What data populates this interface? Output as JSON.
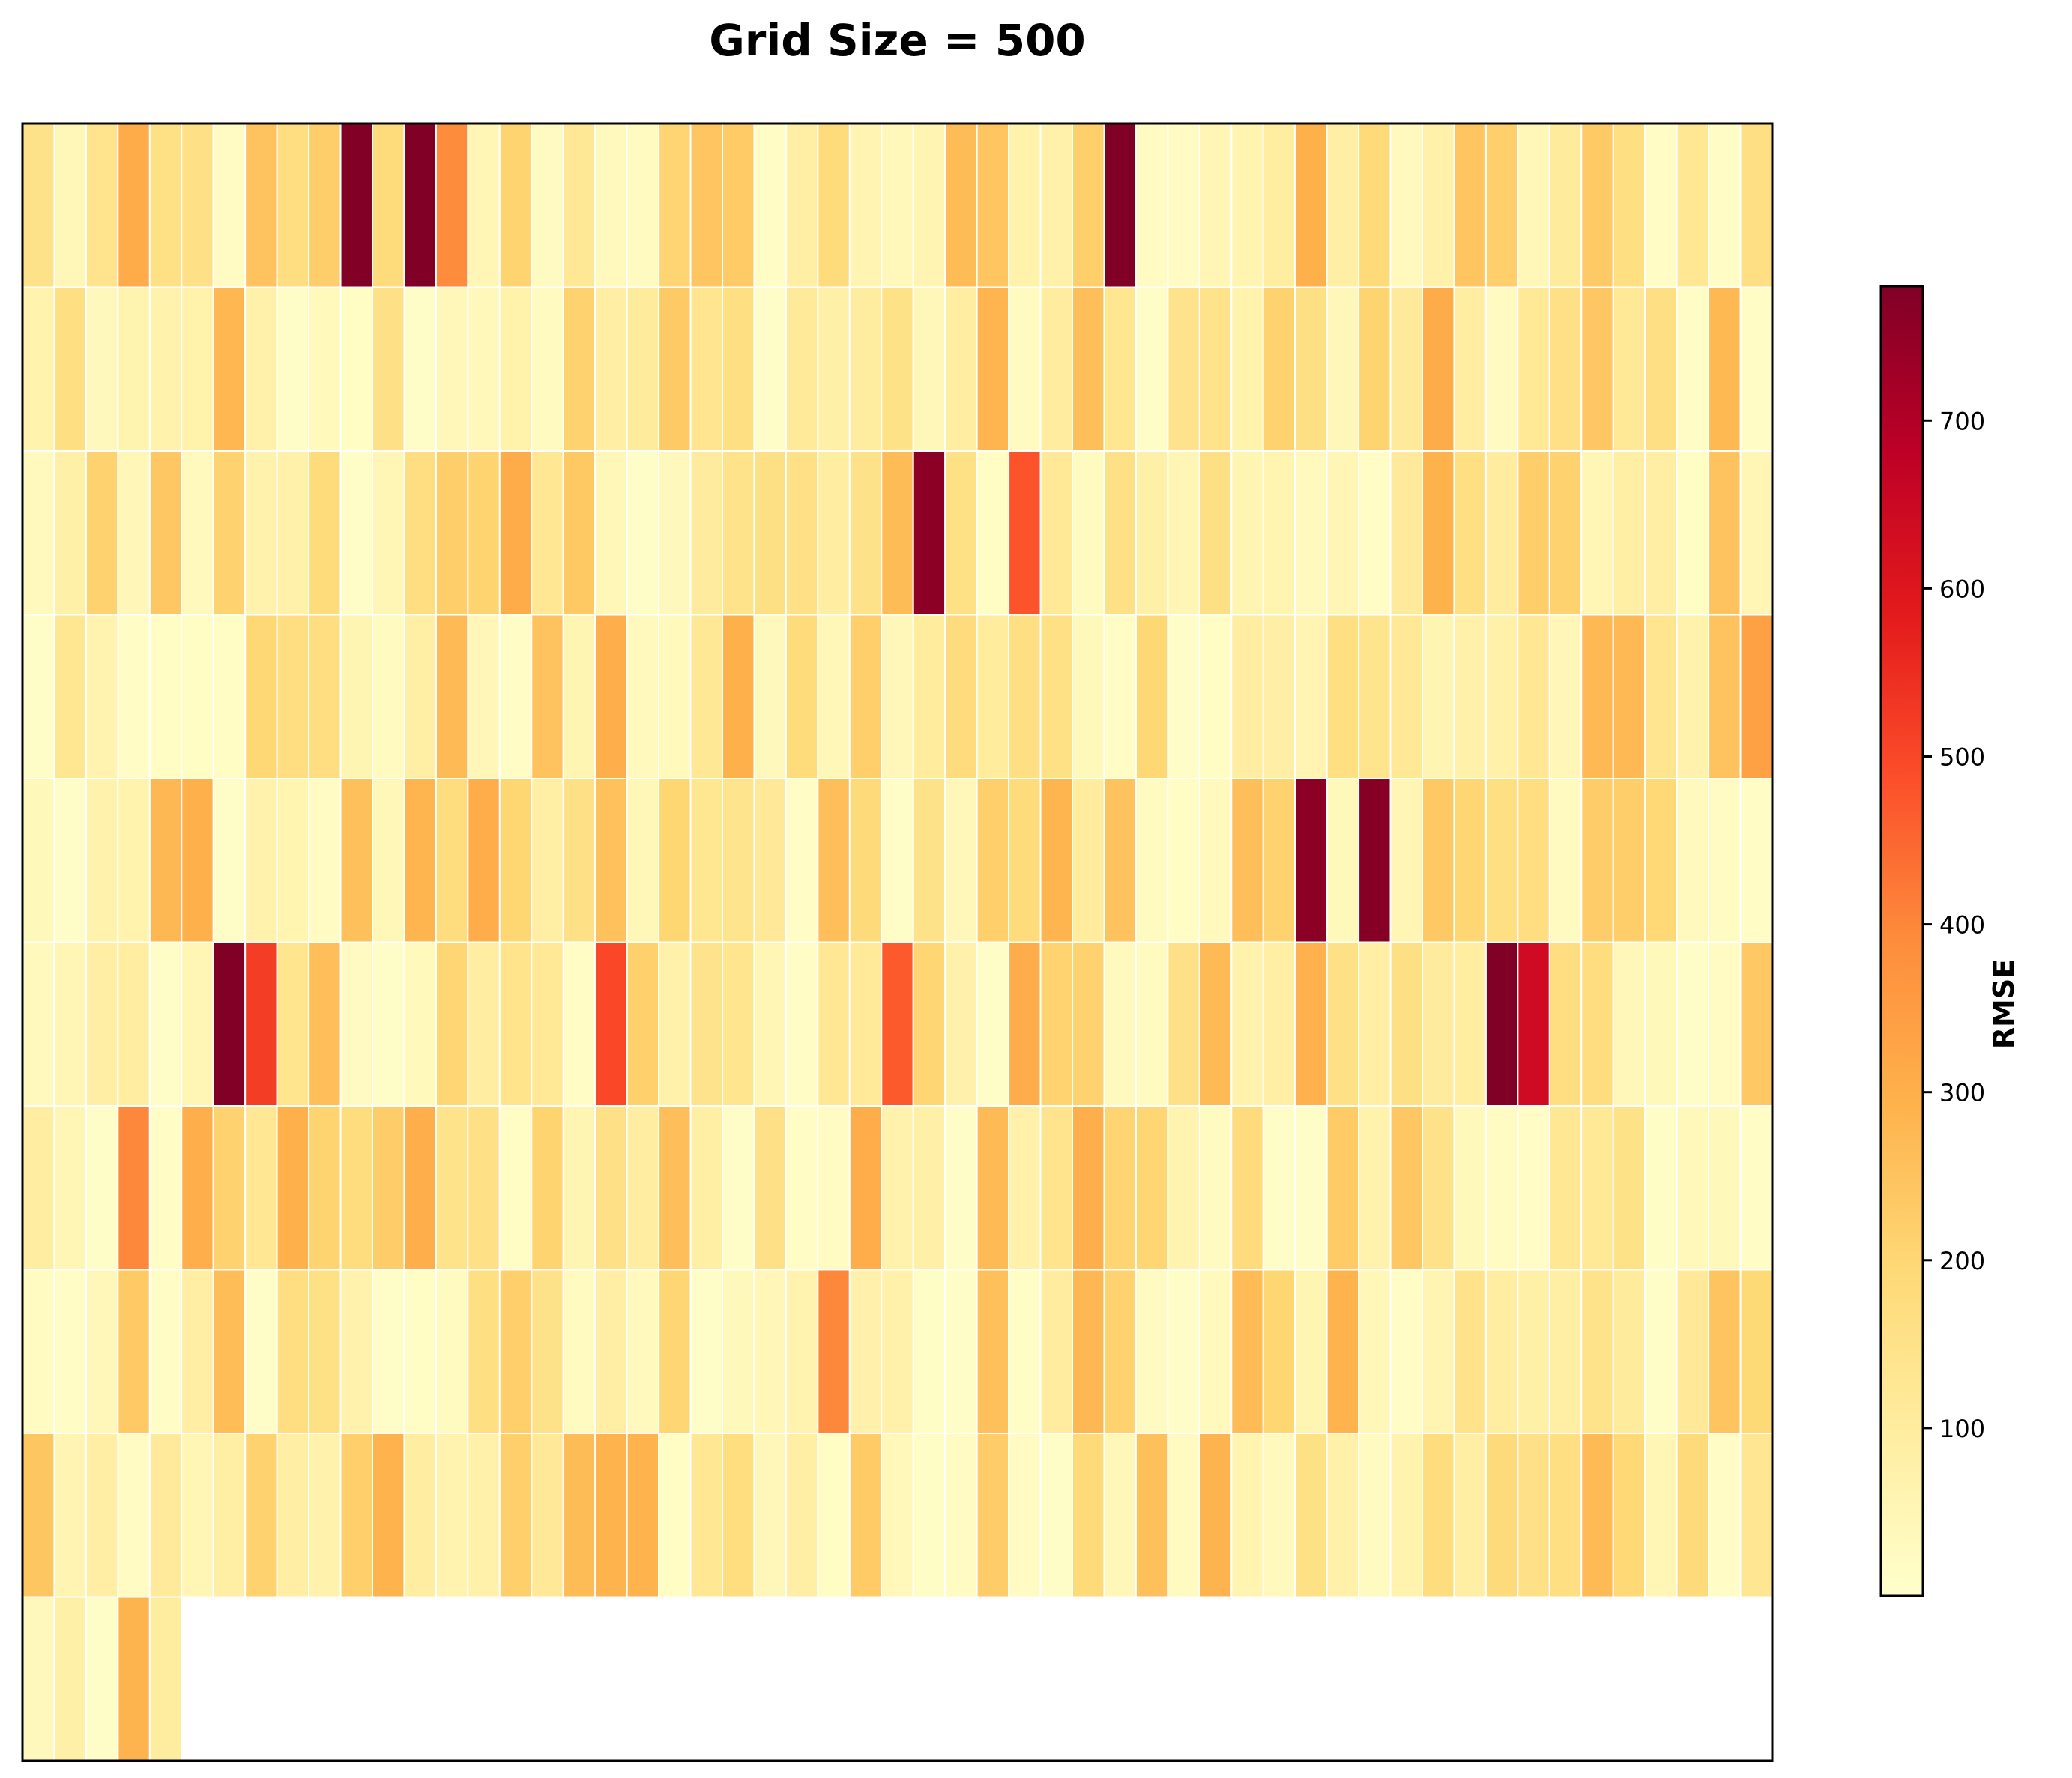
{
  "chart_data": {
    "type": "heatmap",
    "title": "Grid Size = 500",
    "colorbar": {
      "label": "RMSE",
      "ticks": [
        100,
        200,
        300,
        400,
        500,
        600,
        700
      ],
      "range": [
        0,
        780
      ]
    },
    "grid": {
      "columns": 55,
      "rows": 10,
      "cells": 500
    },
    "colormap": [
      "#ffffcc",
      "#ffeda0",
      "#fed976",
      "#feb24c",
      "#fd8d3c",
      "#fc4e2a",
      "#e31a1c",
      "#bd0026",
      "#800026"
    ],
    "high_cells": [
      {
        "col": 10,
        "row": 0,
        "value": 780
      },
      {
        "col": 12,
        "row": 0,
        "value": 780
      },
      {
        "col": 13,
        "row": 0,
        "value": 390
      },
      {
        "col": 34,
        "row": 0,
        "value": 780
      },
      {
        "col": 28,
        "row": 2,
        "value": 760
      },
      {
        "col": 31,
        "row": 2,
        "value": 480
      },
      {
        "col": 6,
        "row": 5,
        "value": 780
      },
      {
        "col": 7,
        "row": 5,
        "value": 520
      },
      {
        "col": 18,
        "row": 5,
        "value": 500
      },
      {
        "col": 27,
        "row": 5,
        "value": 470
      },
      {
        "col": 40,
        "row": 4,
        "value": 760
      },
      {
        "col": 42,
        "row": 4,
        "value": 770
      },
      {
        "col": 46,
        "row": 5,
        "value": 780
      },
      {
        "col": 47,
        "row": 5,
        "value": 640
      },
      {
        "col": 9,
        "row": 2,
        "value": 180
      },
      {
        "col": 43,
        "row": 1,
        "value": 110
      },
      {
        "col": 25,
        "row": 7,
        "value": 400
      },
      {
        "col": 40,
        "row": 8,
        "value": 160
      },
      {
        "col": 3,
        "row": 6,
        "value": 400
      },
      {
        "col": 54,
        "row": 3,
        "value": 340
      }
    ]
  }
}
